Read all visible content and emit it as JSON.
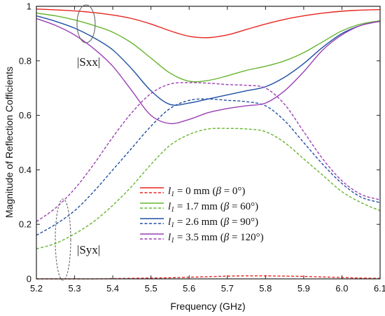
{
  "chart_data": {
    "type": "line",
    "xlabel": "Frequency (GHz)",
    "ylabel": "Magnitude of Reflection Cofficients",
    "xlim": [
      5.2,
      6.1
    ],
    "ylim": [
      0,
      1
    ],
    "xticks": [
      "5.2",
      "5.3",
      "5.4",
      "5.5",
      "5.6",
      "5.7",
      "5.8",
      "5.9",
      "6.0",
      "6.1"
    ],
    "yticks": [
      "0",
      "0.2",
      "0.4",
      "0.6",
      "0.8",
      "1"
    ],
    "grid": false,
    "legend_position": "bottom-center",
    "legend": [
      {
        "label": "l1 = 0 mm (β = 0°)",
        "l": "l",
        "sub": "1",
        "mid": " = 0 mm (",
        "beta": "β",
        "tail": " = 0°)"
      },
      {
        "label": "l1 = 1.7 mm (β = 60°)",
        "l": "l",
        "sub": "1",
        "mid": " = 1.7 mm (",
        "beta": "β",
        "tail": " = 60°)"
      },
      {
        "label": "l1 = 2.6 mm (β = 90°)",
        "l": "l",
        "sub": "1",
        "mid": " = 2.6 mm (",
        "beta": "β",
        "tail": " = 90°)"
      },
      {
        "label": "l1 = 3.5 mm (β = 120°)",
        "l": "l",
        "sub": "1",
        "mid": " = 3.5 mm (",
        "beta": "β",
        "tail": " = 120°)"
      }
    ],
    "annotations": {
      "sxx": "|Sxx|",
      "syx": "|Syx|"
    },
    "x": [
      5.2,
      5.25,
      5.3,
      5.35,
      5.4,
      5.45,
      5.5,
      5.55,
      5.6,
      5.65,
      5.7,
      5.75,
      5.8,
      5.85,
      5.9,
      5.95,
      6.0,
      6.05,
      6.1
    ],
    "series": [
      {
        "name": "l1 = 0 mm (β = 0°)",
        "param": "Sxx",
        "color": "#e8251f",
        "style": "solid",
        "values": [
          0.99,
          0.987,
          0.983,
          0.977,
          0.968,
          0.955,
          0.935,
          0.91,
          0.89,
          0.885,
          0.895,
          0.915,
          0.935,
          0.952,
          0.965,
          0.975,
          0.982,
          0.986,
          0.988
        ]
      },
      {
        "name": "l1 = 0 mm (β = 0°)",
        "param": "Syx",
        "color": "#e8251f",
        "style": "dashed",
        "values": [
          0.0,
          0.0,
          0.0,
          0.0,
          0.001,
          0.002,
          0.003,
          0.004,
          0.006,
          0.008,
          0.01,
          0.011,
          0.011,
          0.01,
          0.009,
          0.007,
          0.005,
          0.003,
          0.002
        ]
      },
      {
        "name": "l1 = 1.7 mm (β = 60°)",
        "param": "Sxx",
        "color": "#66b52f",
        "style": "solid",
        "values": [
          0.975,
          0.965,
          0.95,
          0.93,
          0.905,
          0.865,
          0.81,
          0.755,
          0.725,
          0.728,
          0.745,
          0.765,
          0.78,
          0.8,
          0.83,
          0.87,
          0.91,
          0.935,
          0.947
        ]
      },
      {
        "name": "l1 = 1.7 mm (β = 60°)",
        "param": "Syx",
        "color": "#66b52f",
        "style": "dashed",
        "values": [
          0.11,
          0.13,
          0.165,
          0.21,
          0.27,
          0.34,
          0.42,
          0.49,
          0.53,
          0.55,
          0.552,
          0.55,
          0.54,
          0.5,
          0.44,
          0.38,
          0.32,
          0.28,
          0.25
        ]
      },
      {
        "name": "l1 = 2.6 mm (β = 90°)",
        "param": "Sxx",
        "color": "#1f4fa3",
        "style": "solid",
        "values": [
          0.965,
          0.945,
          0.92,
          0.885,
          0.84,
          0.77,
          0.69,
          0.64,
          0.645,
          0.66,
          0.675,
          0.69,
          0.705,
          0.74,
          0.79,
          0.85,
          0.9,
          0.93,
          0.945
        ]
      },
      {
        "name": "l1 = 2.6 mm (β = 90°)",
        "param": "Syx",
        "color": "#1f4fa3",
        "style": "dashed",
        "values": [
          0.16,
          0.2,
          0.25,
          0.32,
          0.4,
          0.48,
          0.56,
          0.625,
          0.655,
          0.66,
          0.655,
          0.65,
          0.635,
          0.58,
          0.5,
          0.42,
          0.35,
          0.3,
          0.28
        ]
      },
      {
        "name": "l1 = 3.5 mm (β = 120°)",
        "param": "Sxx",
        "color": "#9b3fb5",
        "style": "solid",
        "values": [
          0.955,
          0.93,
          0.895,
          0.845,
          0.78,
          0.69,
          0.6,
          0.57,
          0.585,
          0.61,
          0.625,
          0.635,
          0.645,
          0.69,
          0.76,
          0.84,
          0.895,
          0.93,
          0.945
        ]
      },
      {
        "name": "l1 = 3.5 mm (β = 120°)",
        "param": "Syx",
        "color": "#9b3fb5",
        "style": "dashed",
        "values": [
          0.21,
          0.26,
          0.33,
          0.42,
          0.52,
          0.61,
          0.68,
          0.715,
          0.72,
          0.718,
          0.713,
          0.71,
          0.7,
          0.64,
          0.54,
          0.44,
          0.36,
          0.31,
          0.29
        ]
      }
    ]
  }
}
